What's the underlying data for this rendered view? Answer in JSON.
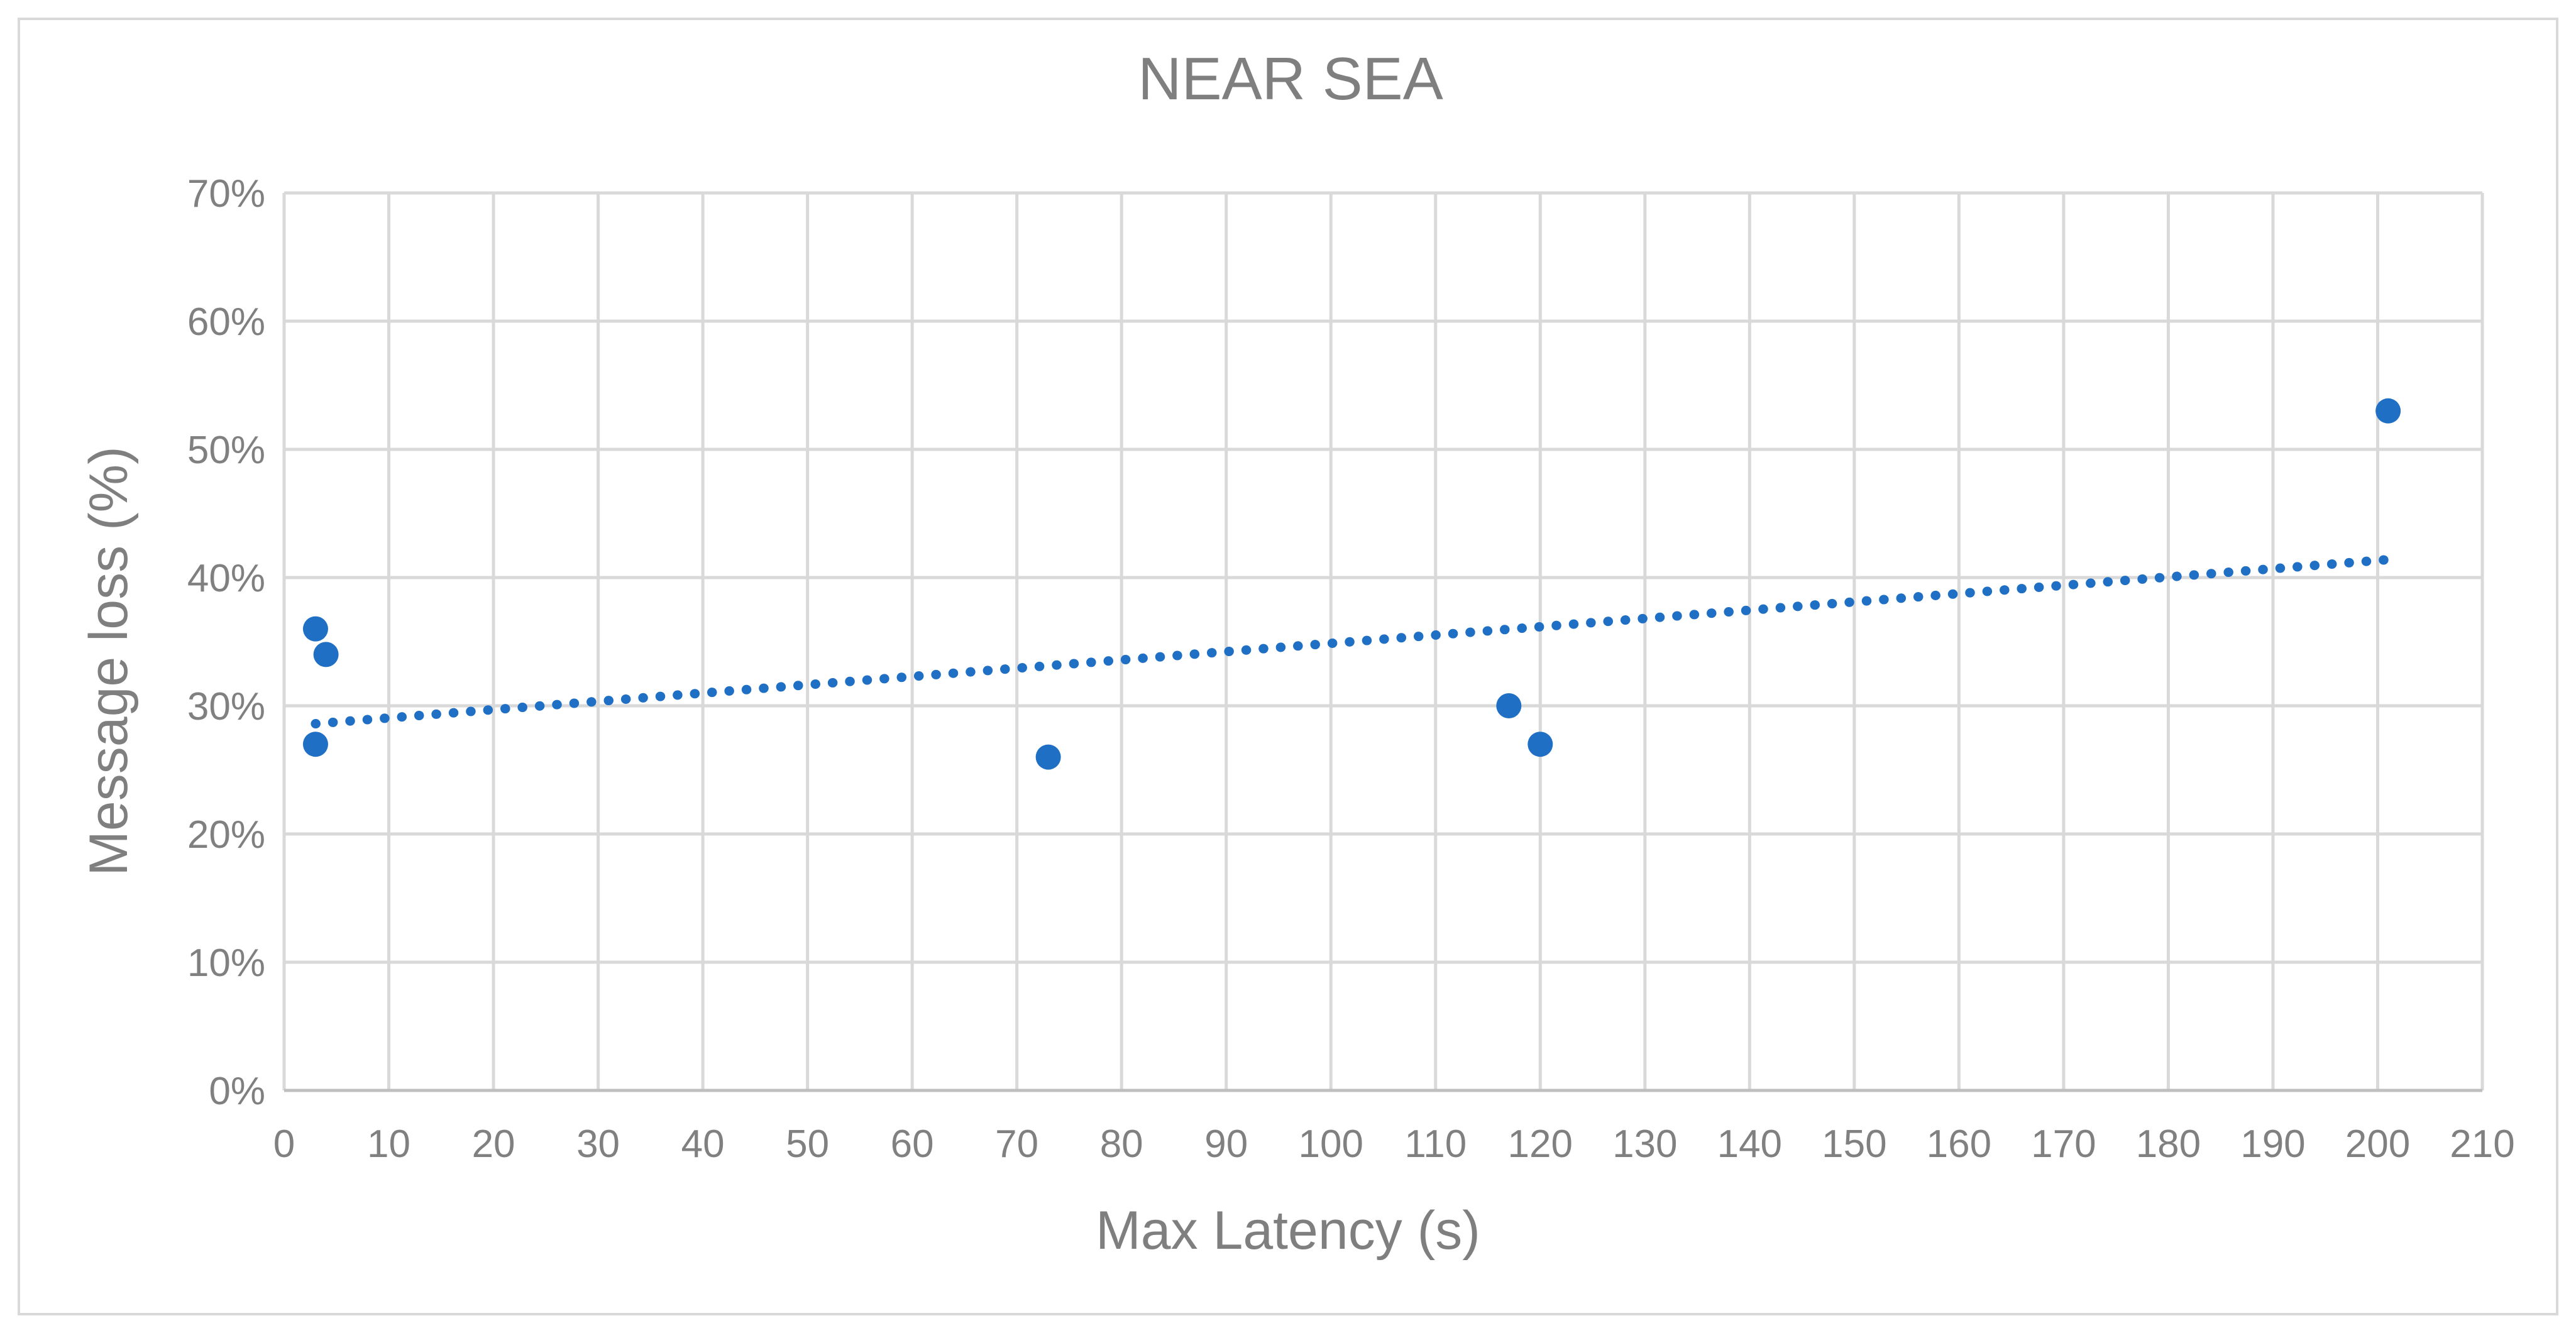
{
  "chart_data": {
    "type": "scatter",
    "title": "NEAR SEA",
    "xlabel": "Max Latency (s)",
    "ylabel": "Message loss (%)",
    "xlim": [
      0,
      210
    ],
    "ylim": [
      0,
      0.7
    ],
    "x_ticks": [
      0,
      10,
      20,
      30,
      40,
      50,
      60,
      70,
      80,
      90,
      100,
      110,
      120,
      130,
      140,
      150,
      160,
      170,
      180,
      190,
      200,
      210
    ],
    "y_ticks": [
      0,
      0.1,
      0.2,
      0.3,
      0.4,
      0.5,
      0.6,
      0.7
    ],
    "y_tick_labels": [
      "0%",
      "10%",
      "20%",
      "30%",
      "40%",
      "50%",
      "60%",
      "70%"
    ],
    "grid": true,
    "legend": "none",
    "series": [
      {
        "points": [
          {
            "x": 3,
            "y": 0.36
          },
          {
            "x": 4,
            "y": 0.34
          },
          {
            "x": 3,
            "y": 0.27
          },
          {
            "x": 73,
            "y": 0.26
          },
          {
            "x": 117,
            "y": 0.3
          },
          {
            "x": 120,
            "y": 0.27
          },
          {
            "x": 201,
            "y": 0.53
          }
        ],
        "color": "#1f6fc5"
      }
    ],
    "trendline": {
      "type": "linear",
      "style": "dotted",
      "x_range": [
        3,
        201
      ],
      "y_start": 0.286,
      "y_end": 0.414,
      "color": "#1f6fc5"
    }
  }
}
